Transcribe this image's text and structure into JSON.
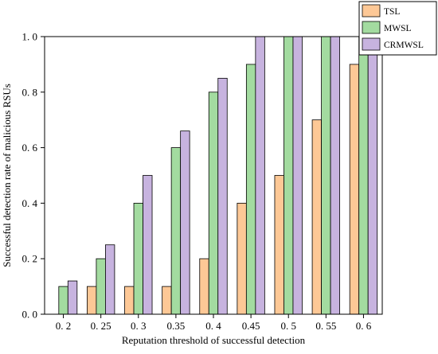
{
  "chart_data": {
    "type": "bar",
    "title": "",
    "xlabel": "Reputation threshold of successful detection",
    "ylabel": "Successful detection rate of malicious RSUs",
    "categories": [
      "0. 2",
      "0. 25",
      "0. 3",
      "0.35",
      "0. 4",
      "0.45",
      "0. 5",
      "0. 55",
      "0. 6"
    ],
    "ylim": [
      0.0,
      1.0
    ],
    "yticks": [
      0.0,
      0.2,
      0.4,
      0.6,
      0.8,
      1.0
    ],
    "ytick_labels": [
      "0. 0",
      "0. 2",
      "0. 4",
      "0. 6",
      "0. 8",
      "1. 0"
    ],
    "grid": false,
    "legend_position": "top-right",
    "series": [
      {
        "name": "TSL",
        "color": "#FDC896",
        "values": [
          0.0,
          0.1,
          0.1,
          0.1,
          0.2,
          0.4,
          0.5,
          0.7,
          0.9
        ]
      },
      {
        "name": "MWSL",
        "color": "#A3DBA0",
        "values": [
          0.1,
          0.2,
          0.4,
          0.6,
          0.8,
          0.9,
          1.0,
          1.0,
          1.0
        ]
      },
      {
        "name": "CRMWSL",
        "color": "#C7B3DF",
        "values": [
          0.12,
          0.25,
          0.5,
          0.66,
          0.85,
          1.0,
          1.0,
          1.0,
          1.0
        ]
      }
    ]
  }
}
